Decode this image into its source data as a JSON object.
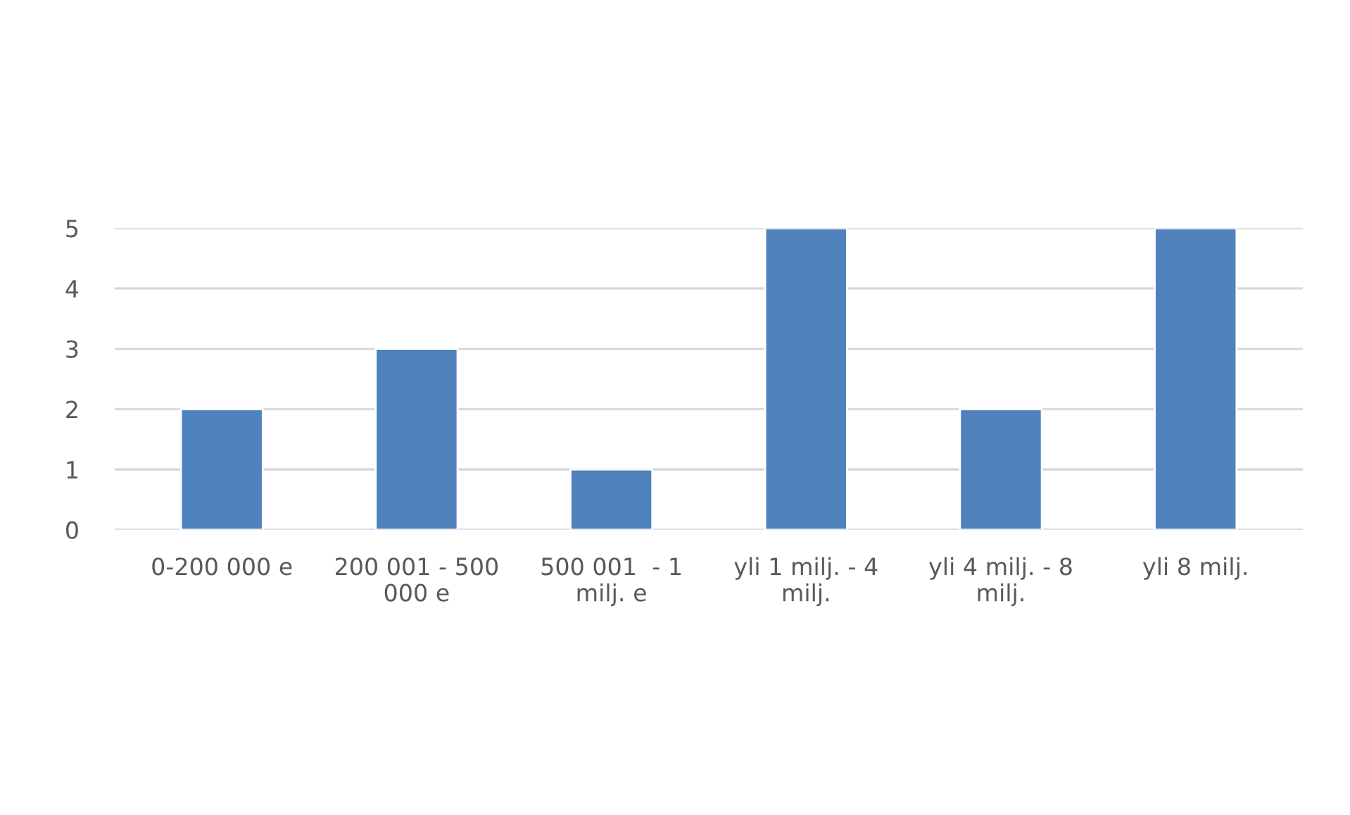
{
  "chart_data": {
    "type": "bar",
    "categories": [
      "0-200 000 e",
      "200 001 - 500 000 e",
      "500 001  - 1 milj. e",
      "yli 1 milj. - 4 milj.",
      "yli 4 milj. - 8 milj.",
      "yli 8 milj."
    ],
    "values": [
      2,
      3,
      1,
      5,
      2,
      5
    ],
    "color": "#4f81bd",
    "ylim": [
      0,
      5
    ],
    "yticks": [
      0,
      1,
      2,
      3,
      4,
      5
    ],
    "grid": "y"
  }
}
